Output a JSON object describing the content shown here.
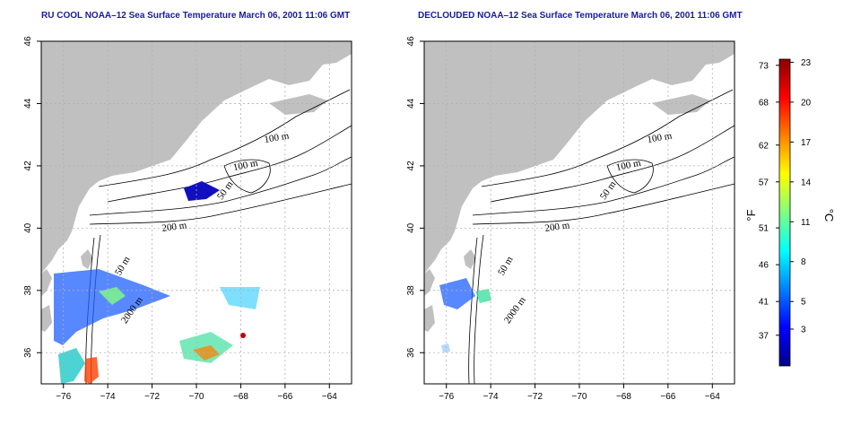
{
  "panels": [
    {
      "title": "RU COOL NOAA–12 Sea Surface Temperature March 06, 2001 11:06 GMT",
      "contour_labels": [
        "100 m",
        "100 m",
        "50 m",
        "200 m",
        "50 m",
        "2000 m"
      ]
    },
    {
      "title": "DECLOUDED NOAA–12 Sea Surface Temperature March 06, 2001 11:06 GMT",
      "contour_labels": [
        "100 m",
        "100 m",
        "50 m",
        "200 m",
        "50 m",
        "2000 m"
      ]
    }
  ],
  "axes": {
    "x_ticks": [
      "−76",
      "−74",
      "−72",
      "−70",
      "−68",
      "−66",
      "−64"
    ],
    "y_ticks": [
      "36",
      "38",
      "40",
      "42",
      "44",
      "46"
    ],
    "x_range": [
      -77.0,
      -63.0
    ],
    "y_range": [
      35.0,
      46.0
    ]
  },
  "colorbar": {
    "fahrenheit_ticks": [
      "73",
      "68",
      "62",
      "57",
      "51",
      "46",
      "41",
      "37"
    ],
    "celsius_ticks": [
      "23",
      "20",
      "17",
      "14",
      "11",
      "8",
      "5",
      "3"
    ],
    "fahrenheit_unit": "°F",
    "celsius_unit": "°C",
    "colors": [
      "#00008b",
      "#0000ff",
      "#0080ff",
      "#00ffff",
      "#80ff80",
      "#ffff00",
      "#ff8000",
      "#ff0000",
      "#8b0000"
    ]
  },
  "colors": {
    "land": "#c0c0c0",
    "title": "#1a1a9c",
    "grid": "#b0b0b0"
  }
}
